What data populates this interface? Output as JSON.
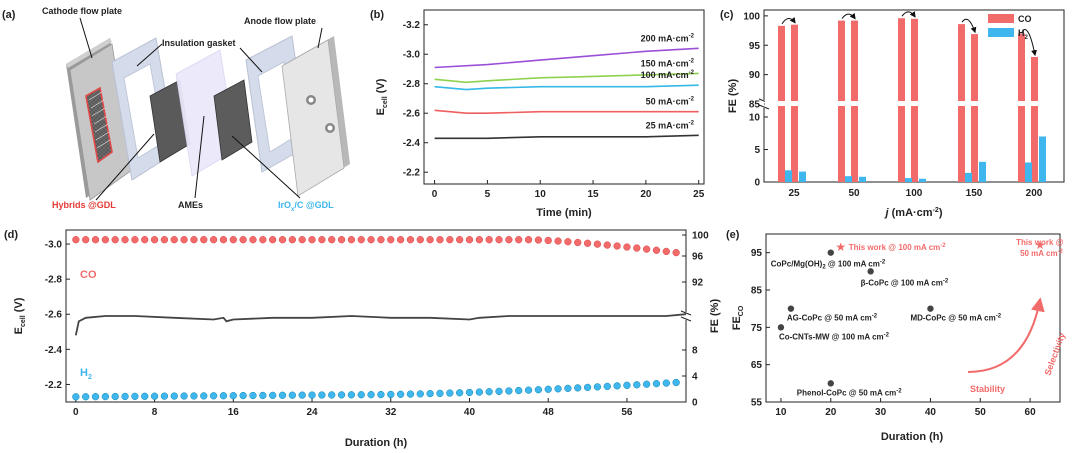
{
  "colors": {
    "co": "#f26b6b",
    "h2": "#3fb6ee",
    "curve200": "#9a4fd8",
    "curve150": "#8fd14f",
    "curve100": "#33b8e8",
    "curve50": "#ef5f5f",
    "curve25": "#333333",
    "stability": "#444444",
    "red_label": "#e53935",
    "blue_label": "#3fb6ee"
  },
  "panel_a": {
    "label": "(a)",
    "cathode": "Cathode flow plate",
    "gasket": "Insulation gasket",
    "anode": "Anode flow plate",
    "hybrids": "Hybrids @GDL",
    "ames": "AMEs",
    "iro2_main": "IrO",
    "iro2_sub": "x",
    "iro2_rest": "/C @GDL"
  },
  "chart_data": [
    {
      "panel": "b",
      "type": "line",
      "label": "(b)",
      "xlabel": "Time (min)",
      "ylabel": "E",
      "ylabel_sub": "cell",
      "ylabel_unit": " (V)",
      "xlim": [
        -1,
        25.5
      ],
      "ylim": [
        -3.3,
        -2.12
      ],
      "xticks": [
        "0",
        "5",
        "10",
        "15",
        "20",
        "25"
      ],
      "yticks": [
        "-3.2",
        "-3.0",
        "-2.8",
        "-2.6",
        "-2.4",
        "-2.2"
      ],
      "series": [
        {
          "name": "200 mA·cm",
          "sup": "-2",
          "color": "curve200",
          "x": [
            0,
            5,
            10,
            15,
            20,
            25
          ],
          "y": [
            -2.91,
            -2.93,
            -2.96,
            -2.99,
            -3.02,
            -3.04
          ]
        },
        {
          "name": "150 mA·cm",
          "sup": "-2",
          "color": "curve150",
          "x": [
            0,
            3,
            5,
            10,
            15,
            20,
            25
          ],
          "y": [
            -2.83,
            -2.81,
            -2.82,
            -2.84,
            -2.85,
            -2.86,
            -2.87
          ]
        },
        {
          "name": "100 mA·cm",
          "sup": "-2",
          "color": "curve100",
          "x": [
            0,
            3,
            5,
            10,
            15,
            20,
            25
          ],
          "y": [
            -2.78,
            -2.76,
            -2.77,
            -2.78,
            -2.78,
            -2.78,
            -2.79
          ]
        },
        {
          "name": "50 mA·cm",
          "sup": "-2",
          "color": "curve50",
          "x": [
            0,
            3,
            5,
            10,
            15,
            20,
            25
          ],
          "y": [
            -2.62,
            -2.6,
            -2.6,
            -2.61,
            -2.61,
            -2.61,
            -2.61
          ]
        },
        {
          "name": "25 mA·cm",
          "sup": "-2",
          "color": "curve25",
          "x": [
            0,
            3,
            5,
            10,
            15,
            20,
            25
          ],
          "y": [
            -2.43,
            -2.43,
            -2.43,
            -2.44,
            -2.44,
            -2.44,
            -2.45
          ]
        }
      ]
    },
    {
      "panel": "c",
      "type": "bar",
      "label": "(c)",
      "xlabel_main": "j",
      "xlabel_rest": " (mA·cm",
      "xlabel_sup": "-2",
      "xlabel_end": ")",
      "ylabel": "FE (%)",
      "categories": [
        "25",
        "50",
        "100",
        "150",
        "200"
      ],
      "upper_yticks": [
        "85",
        "90",
        "95",
        "100"
      ],
      "lower_yticks": [
        "0",
        "5",
        "10"
      ],
      "upper_range": [
        85,
        101
      ],
      "lower_range": [
        0,
        12
      ],
      "legend": [
        {
          "name": "CO",
          "color": "co"
        },
        {
          "name": "H",
          "sub": "2",
          "color": "h2"
        }
      ],
      "series": [
        {
          "name": "CO start",
          "color": "co",
          "values": [
            98.3,
            99.2,
            99.6,
            98.6,
            97.0
          ]
        },
        {
          "name": "CO end",
          "color": "co",
          "values": [
            98.5,
            99.2,
            99.5,
            96.9,
            93.0
          ]
        },
        {
          "name": "H2 start",
          "color": "h2",
          "values": [
            1.8,
            0.9,
            0.6,
            1.4,
            3.0
          ]
        },
        {
          "name": "H2 end",
          "color": "h2",
          "values": [
            1.6,
            0.8,
            0.5,
            3.1,
            7.0
          ]
        }
      ]
    },
    {
      "panel": "d",
      "type": "line",
      "label": "(d)",
      "xlabel": "Duration (h)",
      "ylabel": "E",
      "ylabel_sub": "cell",
      "ylabel_unit": " (V)",
      "y2label": "FE (%)",
      "xlim": [
        -1,
        62
      ],
      "ylim": [
        -3.08,
        -2.1
      ],
      "y2lim": [
        0,
        100
      ],
      "xticks": [
        "0",
        "8",
        "16",
        "24",
        "32",
        "40",
        "48",
        "56"
      ],
      "yticks": [
        "-3.0",
        "-2.8",
        "-2.6",
        "-2.4",
        "-2.2"
      ],
      "y2ticks": [
        "0",
        "4",
        "8",
        "92",
        "96",
        "100"
      ],
      "co_label": "CO",
      "h2_label": "H",
      "h2_sub": "2",
      "series": [
        {
          "name": "E cell",
          "color": "stability",
          "x": [
            0,
            0.3,
            1,
            3,
            6,
            10,
            14,
            15,
            15.3,
            16,
            20,
            24,
            28,
            32,
            36,
            40,
            41,
            44,
            48,
            52,
            56,
            60,
            62
          ],
          "y": [
            -2.48,
            -2.56,
            -2.58,
            -2.59,
            -2.59,
            -2.58,
            -2.57,
            -2.58,
            -2.56,
            -2.57,
            -2.58,
            -2.58,
            -2.59,
            -2.58,
            -2.58,
            -2.57,
            -2.58,
            -2.59,
            -2.59,
            -2.59,
            -2.59,
            -2.59,
            -2.6
          ]
        },
        {
          "name": "FE CO",
          "color": "co",
          "x_step": 1,
          "count": 62,
          "start": 99.2,
          "end": 97.0,
          "bend": 46
        },
        {
          "name": "FE H2",
          "color": "h2",
          "x_step": 1,
          "count": 62,
          "start": 0.8,
          "end": 3.0,
          "bend": 30
        }
      ]
    },
    {
      "panel": "e",
      "type": "scatter",
      "label": "(e)",
      "xlabel": "Duration (h)",
      "ylabel": "FE",
      "ylabel_sub": "CO",
      "xlim": [
        7,
        66
      ],
      "ylim": [
        55,
        100
      ],
      "xticks": [
        "10",
        "20",
        "30",
        "40",
        "50",
        "60"
      ],
      "yticks": [
        "55",
        "65",
        "75",
        "85",
        "95"
      ],
      "points": [
        {
          "x": 20,
          "y": 95,
          "label": "CoPc/Mg(OH)",
          "sub": "2",
          "rest": " @ 100 mA cm",
          "sup": "-2",
          "highlight": false
        },
        {
          "x": 28,
          "y": 90,
          "label": "β-CoPc @ 100 mA cm",
          "sup": "-2",
          "highlight": false
        },
        {
          "x": 12,
          "y": 80,
          "label": "AG-CoPc @ 50 mA cm",
          "sup": "-2",
          "highlight": false
        },
        {
          "x": 40,
          "y": 80,
          "label": "MD-CoPc @ 50 mA cm",
          "sup": "-2",
          "highlight": false
        },
        {
          "x": 10,
          "y": 75,
          "label": "Co-CNTs-MW @ 100 mA cm",
          "sup": "-2",
          "highlight": false
        },
        {
          "x": 20,
          "y": 60,
          "label": "Phenol-CoPc @ 50 mA cm",
          "sup": "-2",
          "highlight": false
        },
        {
          "x": 22,
          "y": 96.5,
          "label": "This work @ 100 mA cm",
          "sup": "-2",
          "highlight": true
        },
        {
          "x": 62,
          "y": 97,
          "label": "This work @",
          "label2": "50 mA cm",
          "sup": "-2",
          "highlight": true
        }
      ],
      "arrow_stability": "Stability",
      "arrow_selectivity": "Selectivity"
    }
  ]
}
